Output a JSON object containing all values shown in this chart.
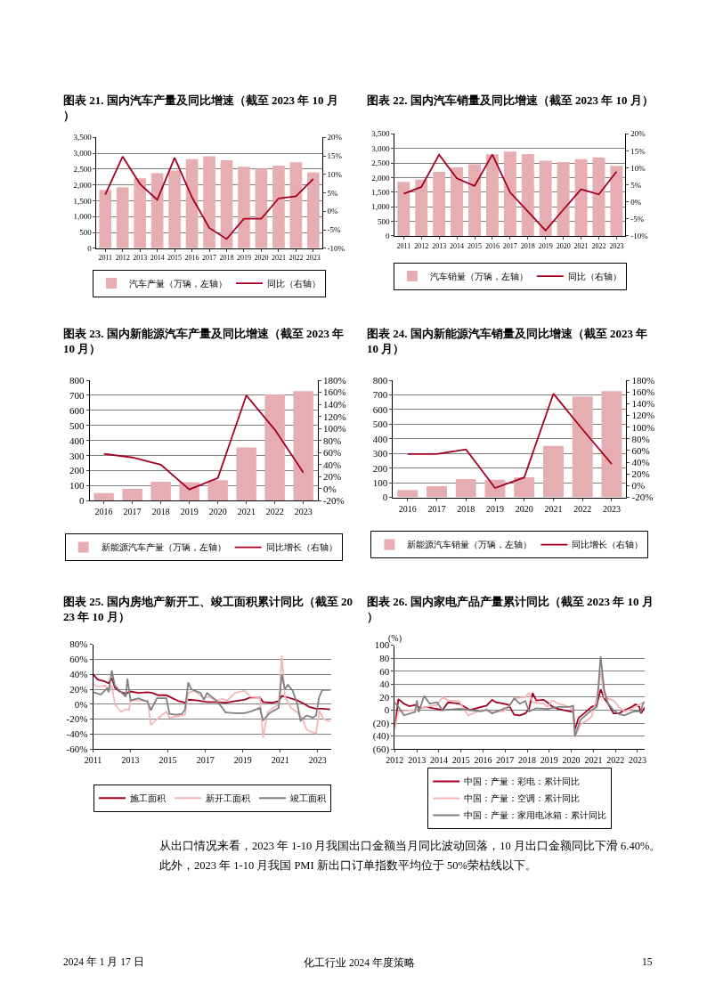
{
  "chart_data": [
    {
      "type": "bar",
      "title": "图表 21. 国内汽车产量及同比增速（截至 2023 年 10 月）",
      "categories": [
        "2011",
        "2012",
        "2013",
        "2014",
        "2015",
        "2016",
        "2017",
        "2018",
        "2019",
        "2020",
        "2021",
        "2022",
        "2023"
      ],
      "series": [
        {
          "name": "汽车产量（万辆，左轴）",
          "color": "#e6aeb0",
          "values": [
            1840,
            1930,
            2210,
            2370,
            2450,
            2810,
            2900,
            2780,
            2570,
            2520,
            2610,
            2710,
            2390
          ]
        },
        {
          "name": "同比（右轴）",
          "type": "line",
          "axis": "y2",
          "color": "#a50021",
          "values": [
            4.5,
            14.8,
            7.4,
            3.1,
            14.5,
            3.8,
            -4.5,
            -7.5,
            -2.0,
            -2.0,
            3.5,
            4.1,
            8.8
          ]
        }
      ],
      "ylim": [
        0,
        3500
      ],
      "yticks": [
        0,
        500,
        {
          "value": 1000,
          "label": "1,000"
        },
        {
          "value": 1500,
          "label": "1,500"
        },
        {
          "value": 2000,
          "label": "2,000"
        },
        {
          "value": 2500,
          "label": "2,500"
        },
        {
          "value": 3000,
          "label": "3,000"
        },
        {
          "value": 3500,
          "label": "3,500"
        }
      ],
      "y2lim": [
        -10,
        20
      ],
      "y2ticks": [
        {
          "value": -10,
          "label": "-10%"
        },
        {
          "value": -5,
          "label": "-5%"
        },
        {
          "value": 0,
          "label": "0%"
        },
        {
          "value": 5,
          "label": "5%"
        },
        {
          "value": 10,
          "label": "10%"
        },
        {
          "value": 15,
          "label": "15%"
        },
        {
          "value": 20,
          "label": "20%"
        }
      ],
      "grid": "y",
      "legend": "bottom"
    },
    {
      "type": "bar",
      "title": "图表 22. 国内汽车销量及同比增速（截至 2023 年 10 月）",
      "categories": [
        "2011",
        "2012",
        "2013",
        "2014",
        "2015",
        "2016",
        "2017",
        "2018",
        "2019",
        "2020",
        "2021",
        "2022",
        "2023"
      ],
      "series": [
        {
          "name": "汽车销量（万辆，左轴）",
          "color": "#e6aeb0",
          "values": [
            1850,
            1930,
            2200,
            2350,
            2460,
            2800,
            2890,
            2810,
            2580,
            2530,
            2630,
            2690,
            2400
          ]
        },
        {
          "name": "同比（右轴）",
          "type": "line",
          "axis": "y2",
          "color": "#a50021",
          "values": [
            2.4,
            4.4,
            13.9,
            6.9,
            4.7,
            13.9,
            2.8,
            -2.8,
            -8.4,
            -2.3,
            3.7,
            2.2,
            8.9
          ]
        }
      ],
      "ylim": [
        0,
        3500
      ],
      "yticks": [
        0,
        500,
        {
          "value": 1000,
          "label": "1,000"
        },
        {
          "value": 1500,
          "label": "1,500"
        },
        {
          "value": 2000,
          "label": "2,000"
        },
        {
          "value": 2500,
          "label": "2,500"
        },
        {
          "value": 3000,
          "label": "3,000"
        },
        {
          "value": 3500,
          "label": "3,500"
        }
      ],
      "y2lim": [
        -10,
        20
      ],
      "y2ticks": [
        {
          "value": -10,
          "label": "-10%"
        },
        {
          "value": -5,
          "label": "-5%"
        },
        {
          "value": 0,
          "label": "0%"
        },
        {
          "value": 5,
          "label": "5%"
        },
        {
          "value": 10,
          "label": "10%"
        },
        {
          "value": 15,
          "label": "15%"
        },
        {
          "value": 20,
          "label": "20%"
        }
      ],
      "grid": "y",
      "legend": "bottom"
    },
    {
      "type": "bar",
      "title": "图表 23. 国内新能源汽车产量及同比增速（截至 2023 年 10 月）",
      "categories": [
        "2016",
        "2017",
        "2018",
        "2019",
        "2020",
        "2021",
        "2022",
        "2023"
      ],
      "series": [
        {
          "name": "新能源汽车产量（万辆，左轴）",
          "color": "#e6aeb0",
          "values": [
            52,
            79,
            127,
            124,
            137,
            355,
            706,
            728
          ]
        },
        {
          "name": "同比增长（右轴）",
          "type": "line",
          "axis": "y2",
          "color": "#a50021",
          "values": [
            58,
            52,
            40,
            -1,
            18,
            155,
            98,
            27
          ]
        }
      ],
      "ylim": [
        0,
        800
      ],
      "yticks": [
        0,
        100,
        200,
        300,
        400,
        500,
        600,
        700,
        800
      ],
      "y2lim": [
        -20,
        180
      ],
      "y2ticks": [
        {
          "value": -20,
          "label": "-20%"
        },
        {
          "value": 0,
          "label": "0%"
        },
        {
          "value": 20,
          "label": "20%"
        },
        {
          "value": 40,
          "label": "40%"
        },
        {
          "value": 60,
          "label": "60%"
        },
        {
          "value": 80,
          "label": "80%"
        },
        {
          "value": 100,
          "label": "100%"
        },
        {
          "value": 120,
          "label": "120%"
        },
        {
          "value": 140,
          "label": "140%"
        },
        {
          "value": 160,
          "label": "160%"
        },
        {
          "value": 180,
          "label": "180%"
        }
      ],
      "grid": "y",
      "legend": "bottom"
    },
    {
      "type": "bar",
      "title": "图表 24. 国内新能源汽车销量及同比增速（截至 2023 年 10 月）",
      "categories": [
        "2016",
        "2017",
        "2018",
        "2019",
        "2020",
        "2021",
        "2022",
        "2023"
      ],
      "series": [
        {
          "name": "新能源汽车销量（万辆，左轴）",
          "color": "#e6aeb0",
          "values": [
            51,
            77,
            125,
            121,
            137,
            352,
            689,
            726
          ]
        },
        {
          "name": "同比增长（右轴）",
          "type": "line",
          "axis": "y2",
          "color": "#a50021",
          "values": [
            54,
            54,
            62,
            -4,
            14,
            157,
            96,
            37
          ]
        }
      ],
      "ylim": [
        0,
        800
      ],
      "yticks": [
        0,
        100,
        200,
        300,
        400,
        500,
        600,
        700,
        800
      ],
      "y2lim": [
        -20,
        180
      ],
      "y2ticks": [
        {
          "value": -20,
          "label": "-20%"
        },
        {
          "value": 0,
          "label": "0%"
        },
        {
          "value": 20,
          "label": "20%"
        },
        {
          "value": 40,
          "label": "40%"
        },
        {
          "value": 60,
          "label": "60%"
        },
        {
          "value": 80,
          "label": "80%"
        },
        {
          "value": 100,
          "label": "100%"
        },
        {
          "value": 120,
          "label": "120%"
        },
        {
          "value": 140,
          "label": "140%"
        },
        {
          "value": 160,
          "label": "160%"
        },
        {
          "value": 180,
          "label": "180%"
        }
      ],
      "grid": "y",
      "legend": "bottom"
    },
    {
      "type": "line",
      "title": "图表 25. 国内房地产新开工、竣工面积累计同比（截至 2023 年 10 月）",
      "series": [
        {
          "name": "施工面积",
          "color": "#a50021",
          "x": [
            "2011-01",
            "2011-04",
            "2011-08",
            "2011-11",
            "2012-01",
            "2012-03",
            "2012-06",
            "2012-10",
            "2013-01",
            "2013-06",
            "2013-12",
            "2014-03",
            "2014-07",
            "2014-12",
            "2015-04",
            "2015-08",
            "2015-12",
            "2016-02",
            "2016-08",
            "2017-02",
            "2017-08",
            "2018-02",
            "2018-08",
            "2019-02",
            "2019-06",
            "2019-12",
            "2020-02",
            "2020-08",
            "2020-12",
            "2021-02",
            "2021-06",
            "2021-12",
            "2022-04",
            "2022-08",
            "2022-12",
            "2023-04",
            "2023-09"
          ],
          "values": [
            40,
            33,
            31,
            28,
            35,
            22,
            17,
            14,
            17,
            15,
            16,
            15,
            12,
            12,
            8,
            4,
            2,
            6,
            5,
            3,
            3,
            2,
            4,
            6,
            9,
            9,
            3,
            2,
            4,
            11,
            9,
            5,
            1,
            -4,
            -6,
            -6,
            -7
          ]
        },
        {
          "name": "新开工面积",
          "color": "#f4b6b8",
          "x": [
            "2011-01",
            "2011-03",
            "2011-06",
            "2011-09",
            "2011-11",
            "2012-01",
            "2012-03",
            "2012-05",
            "2012-07",
            "2012-10",
            "2012-12",
            "2013-01",
            "2013-06",
            "2013-12",
            "2014-02",
            "2014-06",
            "2014-12",
            "2015-02",
            "2015-08",
            "2015-12",
            "2016-02",
            "2016-06",
            "2016-12",
            "2017-03",
            "2017-08",
            "2017-12",
            "2018-03",
            "2018-08",
            "2019-02",
            "2019-06",
            "2019-12",
            "2020-02",
            "2020-05",
            "2020-10",
            "2020-12",
            "2021-02",
            "2021-04",
            "2021-08",
            "2021-12",
            "2022-03",
            "2022-06",
            "2022-10",
            "2022-12",
            "2023-02",
            "2023-05",
            "2023-09"
          ],
          "values": [
            28,
            24,
            24,
            25,
            20,
            25,
            0,
            -5,
            -10,
            -7,
            -8,
            5,
            5,
            5,
            -28,
            -20,
            -10,
            -18,
            -16,
            -14,
            15,
            18,
            8,
            10,
            5,
            7,
            5,
            15,
            18,
            10,
            9,
            -45,
            -10,
            -3,
            -2,
            65,
            10,
            -5,
            -11,
            -18,
            -34,
            -38,
            -39,
            -9,
            -20,
            -23
          ]
        },
        {
          "name": "竣工面积",
          "color": "#808080",
          "x": [
            "2011-01",
            "2011-06",
            "2011-10",
            "2011-11",
            "2012-01",
            "2012-03",
            "2012-06",
            "2012-10",
            "2012-11",
            "2013-01",
            "2013-06",
            "2013-12",
            "2014-02",
            "2014-06",
            "2014-12",
            "2015-02",
            "2015-06",
            "2015-10",
            "2015-12",
            "2016-02",
            "2016-04",
            "2016-10",
            "2016-12",
            "2017-02",
            "2017-08",
            "2017-12",
            "2018-02",
            "2018-08",
            "2019-02",
            "2019-06",
            "2019-12",
            "2020-02",
            "2020-06",
            "2020-12",
            "2021-02",
            "2021-04",
            "2021-06",
            "2021-09",
            "2021-12",
            "2022-02",
            "2022-06",
            "2022-10",
            "2022-12",
            "2023-02",
            "2023-04",
            "2023-09"
          ],
          "values": [
            16,
            13,
            21,
            16,
            45,
            25,
            18,
            10,
            34,
            5,
            8,
            3,
            -8,
            8,
            8,
            -13,
            -14,
            -13,
            -7,
            29,
            20,
            15,
            6,
            15,
            5,
            -5,
            -11,
            -12,
            -12,
            -10,
            -5,
            -22,
            -12,
            -5,
            40,
            20,
            26,
            18,
            0,
            -22,
            -15,
            -18,
            -15,
            10,
            19,
            19
          ]
        }
      ],
      "xlim": [
        "2011-01",
        "2023-10"
      ],
      "xticks": [
        "2011",
        "2013",
        "2015",
        "2017",
        "2019",
        "2021",
        "2023"
      ],
      "ylim": [
        -60,
        80
      ],
      "yticks": [
        {
          "value": -60,
          "label": "-60%"
        },
        {
          "value": -40,
          "label": "-40%"
        },
        {
          "value": -20,
          "label": "-20%"
        },
        {
          "value": 0,
          "label": "0%"
        },
        {
          "value": 20,
          "label": "20%"
        },
        {
          "value": 40,
          "label": "40%"
        },
        {
          "value": 60,
          "label": "60%"
        },
        {
          "value": 80,
          "label": "80%"
        }
      ],
      "grid": "y",
      "legend": "bottom"
    },
    {
      "type": "line",
      "title": "图表 26. 国内家电产品产量累计同比（截至 2023 年 10 月）",
      "ylabel": "(%)",
      "series": [
        {
          "name": "中国：产量：彩电：累计同比",
          "color": "#a50021",
          "x": [
            "2012-01",
            "2012-03",
            "2012-06",
            "2012-09",
            "2012-12",
            "2013-03",
            "2013-06",
            "2013-12",
            "2014-03",
            "2014-06",
            "2014-12",
            "2015-03",
            "2015-06",
            "2015-12",
            "2016-03",
            "2016-06",
            "2016-08",
            "2016-12",
            "2017-03",
            "2017-06",
            "2017-09",
            "2017-12",
            "2018-02",
            "2018-04",
            "2018-06",
            "2018-10",
            "2018-12",
            "2019-03",
            "2019-06",
            "2019-12",
            "2020-02",
            "2020-03",
            "2020-05",
            "2020-08",
            "2020-12",
            "2021-03",
            "2021-05",
            "2021-07",
            "2021-09",
            "2021-12",
            "2022-03",
            "2022-06",
            "2022-10",
            "2022-12",
            "2023-02",
            "2023-03",
            "2023-05"
          ],
          "values": [
            -27,
            17,
            10,
            6,
            8,
            3,
            5,
            2,
            0,
            12,
            10,
            5,
            0,
            5,
            7,
            16,
            12,
            10,
            8,
            -7,
            -8,
            -5,
            2,
            26,
            15,
            16,
            12,
            5,
            2,
            -2,
            -3,
            -30,
            -12,
            -5,
            5,
            8,
            32,
            18,
            10,
            -5,
            -5,
            0,
            5,
            9,
            5,
            -5,
            4
          ]
        },
        {
          "name": "中国：产量：空调：累计同比",
          "color": "#f4b6b8",
          "x": [
            "2012-01",
            "2012-03",
            "2012-12",
            "2013-06",
            "2013-12",
            "2014-03",
            "2014-06",
            "2014-12",
            "2015-03",
            "2015-05",
            "2015-12",
            "2016-06",
            "2016-12",
            "2017-03",
            "2017-06",
            "2017-12",
            "2018-02",
            "2018-04",
            "2018-10",
            "2018-12",
            "2019-03",
            "2019-06",
            "2019-12",
            "2020-02",
            "2020-03",
            "2020-06",
            "2020-10",
            "2020-12",
            "2021-03",
            "2021-05",
            "2021-07",
            "2021-12",
            "2022-03",
            "2022-06",
            "2022-10",
            "2022-12",
            "2023-03",
            "2023-05"
          ],
          "values": [
            -30,
            -2,
            0,
            5,
            8,
            20,
            15,
            14,
            0,
            -8,
            0,
            -3,
            -2,
            5,
            18,
            20,
            27,
            12,
            10,
            5,
            15,
            10,
            5,
            0,
            -42,
            -22,
            -15,
            -10,
            20,
            60,
            20,
            15,
            5,
            -2,
            2,
            5,
            10,
            13
          ]
        },
        {
          "name": "中国：产量：家用电冰箱：累计同比",
          "color": "#808080",
          "x": [
            "2012-01",
            "2012-03",
            "2012-06",
            "2012-12",
            "2013-01",
            "2013-02",
            "2013-05",
            "2013-08",
            "2013-12",
            "2014-03",
            "2014-12",
            "2015-06",
            "2015-12",
            "2016-03",
            "2016-06",
            "2016-12",
            "2017-03",
            "2017-06",
            "2017-09",
            "2017-12",
            "2018-02",
            "2018-06",
            "2018-12",
            "2019-06",
            "2019-12",
            "2020-02",
            "2020-03",
            "2020-06",
            "2020-12",
            "2021-03",
            "2021-05",
            "2021-07",
            "2021-09",
            "2021-12",
            "2022-03",
            "2022-06",
            "2022-10",
            "2022-12",
            "2023-03",
            "2023-04",
            "2023-05"
          ],
          "values": [
            12,
            5,
            -8,
            -3,
            15,
            -3,
            22,
            10,
            12,
            0,
            2,
            0,
            -2,
            1,
            -5,
            2,
            5,
            18,
            10,
            14,
            -2,
            3,
            2,
            5,
            5,
            7,
            -40,
            -15,
            0,
            5,
            83,
            30,
            10,
            0,
            -6,
            -8,
            -3,
            -2,
            -2,
            10,
            12
          ]
        }
      ],
      "xlim": [
        "2012-01",
        "2023-05"
      ],
      "xticks": [
        "2012",
        "2013",
        "2014",
        "2015",
        "2016",
        "2017",
        "2018",
        "2019",
        "2020",
        "2021",
        "2022",
        "2023"
      ],
      "ylim": [
        -60,
        100
      ],
      "yticks": [
        {
          "value": -60,
          "label": "(60)"
        },
        {
          "value": -40,
          "label": "(40)"
        },
        {
          "value": -20,
          "label": "(20)"
        },
        0,
        20,
        40,
        60,
        80,
        100
      ],
      "grid": "y",
      "legend": "bottom"
    },
    {
      "type": "other",
      "annotations": [
        "从出口情况来看，2023 年 1-10 月我国出口金额当月同比波动回落，10 月出口金额同比下滑 6.40%。",
        "此外，2023 年 1-10 月我国 PMI 新出口订单指数平均位于 50%荣枯线以下。",
        "2024 年 1 月 17 日",
        "化工行业 2024 年度策略",
        "15"
      ]
    }
  ]
}
